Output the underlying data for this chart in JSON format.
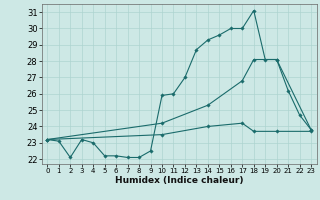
{
  "title": "",
  "xlabel": "Humidex (Indice chaleur)",
  "bg_color": "#cde8e5",
  "grid_color": "#aed4d0",
  "line_color": "#1a6b6b",
  "xlim": [
    -0.5,
    23.5
  ],
  "ylim": [
    21.7,
    31.5
  ],
  "x_ticks": [
    0,
    1,
    2,
    3,
    4,
    5,
    6,
    7,
    8,
    9,
    10,
    11,
    12,
    13,
    14,
    15,
    16,
    17,
    18,
    19,
    20,
    21,
    22,
    23
  ],
  "y_ticks": [
    22,
    23,
    24,
    25,
    26,
    27,
    28,
    29,
    30,
    31
  ],
  "line1_x": [
    0,
    1,
    2,
    3,
    4,
    5,
    6,
    7,
    8,
    9,
    10,
    11,
    12,
    13,
    14,
    15,
    16,
    17,
    18,
    19,
    20,
    21,
    22,
    23
  ],
  "line1_y": [
    23.2,
    23.1,
    22.1,
    23.2,
    23.0,
    22.2,
    22.2,
    22.1,
    22.1,
    22.5,
    25.9,
    26.0,
    27.0,
    28.7,
    29.3,
    29.6,
    30.0,
    30.0,
    31.1,
    28.1,
    28.1,
    26.2,
    24.7,
    23.8
  ],
  "line2_x": [
    0,
    10,
    14,
    17,
    18,
    20,
    23
  ],
  "line2_y": [
    23.2,
    24.2,
    25.3,
    26.8,
    28.1,
    28.1,
    23.8
  ],
  "line3_x": [
    0,
    10,
    14,
    17,
    18,
    20,
    23
  ],
  "line3_y": [
    23.2,
    23.5,
    24.0,
    24.2,
    23.7,
    23.7,
    23.7
  ]
}
